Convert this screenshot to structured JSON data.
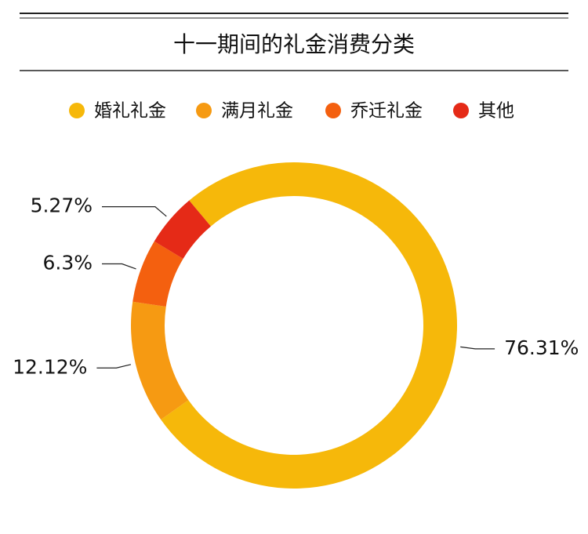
{
  "chart_data": {
    "type": "donut",
    "title": "十一期间的礼金消费分类",
    "categories": [
      "婚礼礼金",
      "满月礼金",
      "乔迁礼金",
      "其他"
    ],
    "values": [
      76.31,
      12.12,
      6.3,
      5.27
    ],
    "value_labels": [
      "76.31%",
      "12.12%",
      "6.3%",
      "5.27%"
    ],
    "colors": [
      "#f6b80a",
      "#f69a12",
      "#f4600f",
      "#e52a17"
    ],
    "legend": "top"
  }
}
